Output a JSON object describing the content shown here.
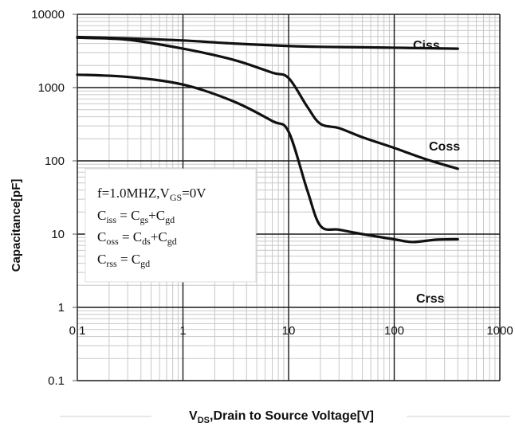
{
  "chart_data": {
    "type": "line",
    "xscale": "log",
    "yscale": "log",
    "xlim": [
      0.1,
      1000
    ],
    "ylim": [
      0.1,
      10000
    ],
    "x_ticks": [
      "0.1",
      "1",
      "10",
      "100",
      "1000"
    ],
    "y_ticks": [
      "0.1",
      "1",
      "10",
      "100",
      "1000",
      "10000"
    ],
    "ylabel": "Capacitance[pF]",
    "xlabel": {
      "prefix": "V",
      "sub": "DS",
      "suffix": ",Drain to Source Voltage[V]"
    },
    "grid": true,
    "series": [
      {
        "name": "Ciss",
        "points": [
          [
            0.1,
            4900
          ],
          [
            0.3,
            4700
          ],
          [
            1,
            4400
          ],
          [
            3,
            4000
          ],
          [
            10,
            3700
          ],
          [
            20,
            3600
          ],
          [
            50,
            3550
          ],
          [
            100,
            3500
          ],
          [
            200,
            3450
          ],
          [
            400,
            3400
          ]
        ]
      },
      {
        "name": "Coss",
        "points": [
          [
            0.1,
            4800
          ],
          [
            0.3,
            4500
          ],
          [
            1,
            3400
          ],
          [
            3,
            2400
          ],
          [
            7,
            1600
          ],
          [
            10,
            1350
          ],
          [
            15,
            550
          ],
          [
            20,
            320
          ],
          [
            30,
            280
          ],
          [
            50,
            210
          ],
          [
            100,
            150
          ],
          [
            200,
            105
          ],
          [
            400,
            78
          ]
        ]
      },
      {
        "name": "Crss",
        "points": [
          [
            0.1,
            1500
          ],
          [
            0.3,
            1400
          ],
          [
            1,
            1100
          ],
          [
            3,
            650
          ],
          [
            7,
            350
          ],
          [
            10,
            250
          ],
          [
            15,
            40
          ],
          [
            20,
            13
          ],
          [
            30,
            11.5
          ],
          [
            50,
            10
          ],
          [
            100,
            8.5
          ],
          [
            150,
            7.8
          ],
          [
            250,
            8.4
          ],
          [
            400,
            8.5
          ]
        ]
      }
    ],
    "annotation": {
      "line1": {
        "a": "f=1.0MHZ,V",
        "a_sub": "GS",
        "b": "=0V"
      },
      "line2": {
        "c1": "C",
        "c1_sub": "iss",
        "eq": " = C",
        "c2_sub": "gs",
        "plus": "+C",
        "c3_sub": "gd"
      },
      "line3": {
        "c1": "C",
        "c1_sub": "oss",
        "eq": " = C",
        "c2_sub": "ds",
        "plus": "+C",
        "c3_sub": "gd"
      },
      "line4": {
        "c1": "C",
        "c1_sub": "rss",
        "eq": " = C",
        "c2_sub": "gd"
      }
    }
  }
}
